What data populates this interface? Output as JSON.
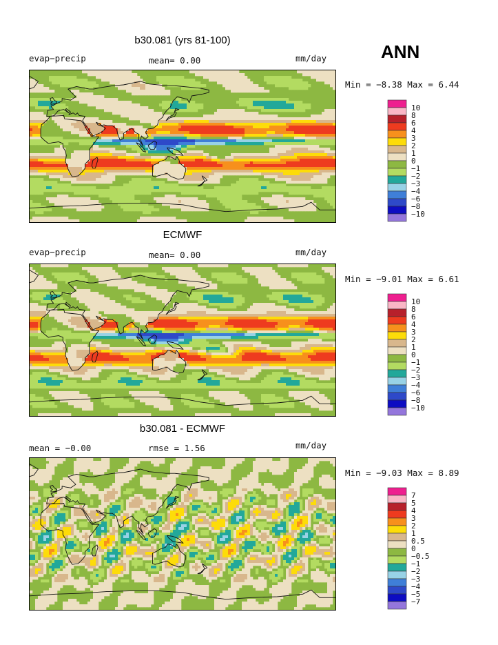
{
  "header": {
    "season": "ANN"
  },
  "colors": {
    "ocean_bg": "#8db842",
    "coast": "#111111",
    "scale": [
      "#ee1f8f",
      "#fab6c6",
      "#b7202b",
      "#ee3b1f",
      "#f7901c",
      "#fddc09",
      "#d8b78c",
      "#ede0c2",
      "#8db842",
      "#b3db61",
      "#22a89a",
      "#98d2e6",
      "#3f7fd8",
      "#2e49c9",
      "#0d0cc2",
      "#9476dc"
    ]
  },
  "panels": [
    {
      "title": "b30.081 (yrs 81-100)",
      "left_label": "evap−precip",
      "middle_label": "mean=    0.00",
      "units": "mm/day",
      "minmax": "Min =  −8.38 Max =    6.44"
    },
    {
      "title": "ECMWF",
      "left_label": "evap−precip",
      "middle_label": "mean=    0.00",
      "units": "mm/day",
      "minmax": "Min =  −9.01 Max =    6.61"
    },
    {
      "title": "b30.081 - ECMWF",
      "left_label": "mean =   −0.00",
      "middle_label": "rmse =    1.56",
      "units": "mm/day",
      "minmax": "Min =  −9.03 Max =    8.89"
    }
  ],
  "chart_data": [
    {
      "type": "heatmap",
      "title": "b30.081 (yrs 81-100)",
      "variable": "evap−precip",
      "units": "mm/day",
      "mean": 0.0,
      "min": -8.38,
      "max": 6.44,
      "colorbar_levels": [
        "10",
        "8",
        "6",
        "4",
        "3",
        "2",
        "1",
        "0",
        "−1",
        "−2",
        "−3",
        "−4",
        "−6",
        "−8",
        "−10"
      ]
    },
    {
      "type": "heatmap",
      "title": "ECMWF",
      "variable": "evap−precip",
      "units": "mm/day",
      "mean": 0.0,
      "min": -9.01,
      "max": 6.61,
      "colorbar_levels": [
        "10",
        "8",
        "6",
        "4",
        "3",
        "2",
        "1",
        "0",
        "−1",
        "−2",
        "−3",
        "−4",
        "−6",
        "−8",
        "−10"
      ]
    },
    {
      "type": "heatmap",
      "title": "b30.081 - ECMWF",
      "units": "mm/day",
      "mean": -0.0,
      "rmse": 1.56,
      "min": -9.03,
      "max": 8.89,
      "colorbar_levels": [
        "7",
        "5",
        "4",
        "3",
        "2",
        "1",
        "0.5",
        "0",
        "−0.5",
        "−1",
        "−2",
        "−3",
        "−4",
        "−5",
        "−7"
      ]
    }
  ]
}
